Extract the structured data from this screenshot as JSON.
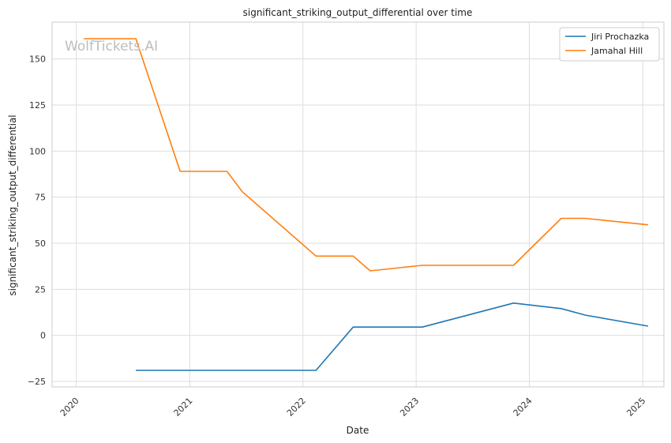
{
  "chart_data": {
    "type": "line",
    "title": "significant_striking_output_differential over time",
    "xlabel": "Date",
    "ylabel": "significant_striking_output_differential",
    "watermark": "WolfTickets.AI",
    "xlim": [
      "2019-10-15",
      "2025-03-10"
    ],
    "ylim": [
      -28,
      170
    ],
    "x_ticks": [
      "2020",
      "2021",
      "2022",
      "2023",
      "2024",
      "2025"
    ],
    "y_ticks": [
      -25,
      0,
      25,
      50,
      75,
      100,
      125,
      150
    ],
    "grid": true,
    "legend_position": "top-right",
    "series": [
      {
        "name": "Jiri Prochazka",
        "color": "#1f77b4",
        "points": [
          [
            "2020-07-11",
            -19
          ],
          [
            "2022-02-12",
            -19
          ],
          [
            "2022-06-12",
            4.5
          ],
          [
            "2023-01-21",
            4.5
          ],
          [
            "2023-11-11",
            17.5
          ],
          [
            "2024-04-13",
            14.5
          ],
          [
            "2024-06-29",
            11
          ],
          [
            "2025-01-18",
            5
          ]
        ]
      },
      {
        "name": "Jamahal Hill",
        "color": "#ff7f0e",
        "points": [
          [
            "2020-01-25",
            161
          ],
          [
            "2020-07-11",
            161
          ],
          [
            "2020-12-01",
            89
          ],
          [
            "2021-05-01",
            89
          ],
          [
            "2021-06-19",
            78
          ],
          [
            "2022-02-12",
            43
          ],
          [
            "2022-06-12",
            43
          ],
          [
            "2022-08-06",
            35
          ],
          [
            "2023-01-21",
            38
          ],
          [
            "2023-11-11",
            38
          ],
          [
            "2024-04-13",
            63.5
          ],
          [
            "2024-06-29",
            63.5
          ],
          [
            "2025-01-18",
            60
          ]
        ]
      }
    ]
  }
}
